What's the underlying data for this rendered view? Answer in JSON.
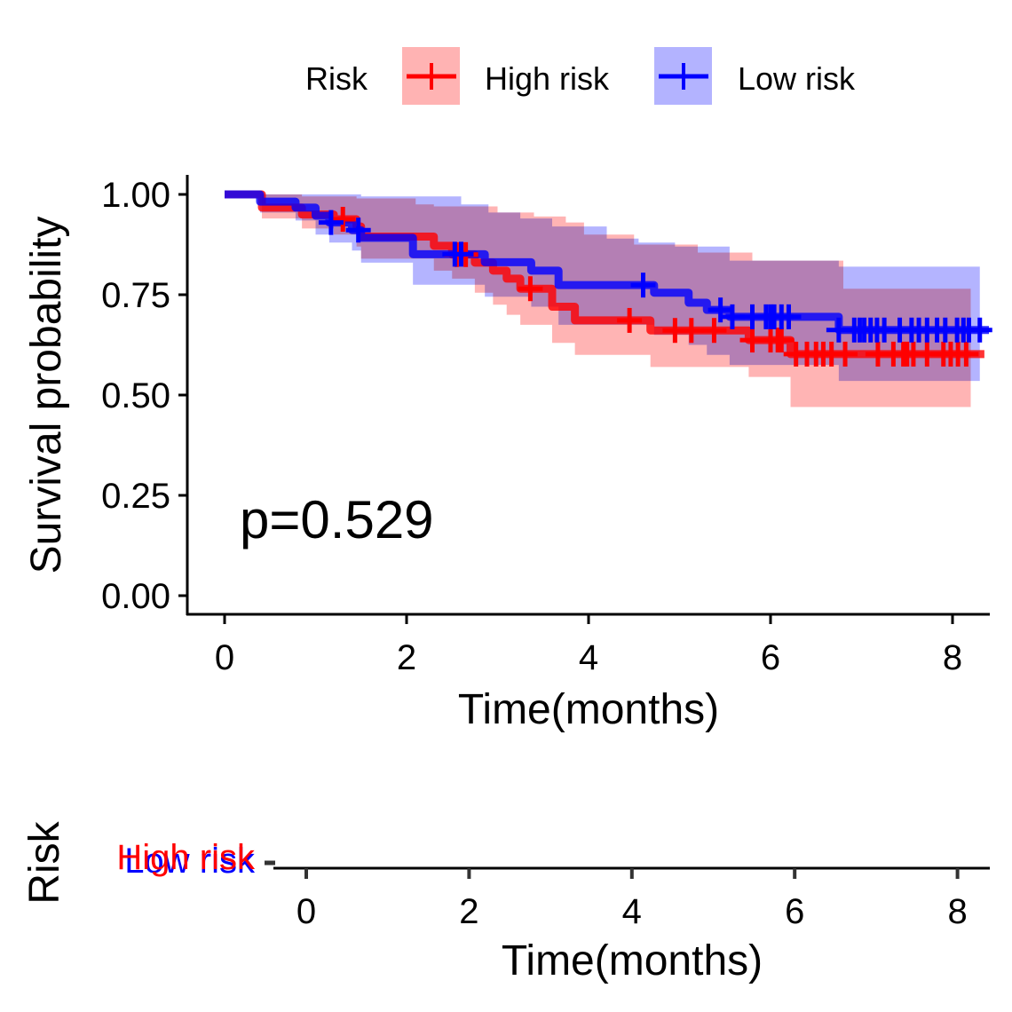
{
  "chart_data": [
    {
      "type": "line",
      "subtype": "kaplan-meier",
      "title": "",
      "xlabel": "Time(months)",
      "ylabel": "Survival probability",
      "xlim": [
        0,
        8.4
      ],
      "ylim": [
        0,
        1.0
      ],
      "xticks": [
        0,
        2,
        4,
        6,
        8
      ],
      "xtick_labels": [
        "0",
        "2",
        "4",
        "6",
        "8"
      ],
      "yticks": [
        0,
        0.25,
        0.5,
        0.75,
        1.0
      ],
      "ytick_labels": [
        "0.00",
        "0.25",
        "0.50",
        "0.75",
        "1.00"
      ],
      "grid": false,
      "annotation": "p=0.529",
      "legend": {
        "title": "Risk",
        "placement": "top",
        "entries": [
          {
            "label": "High risk",
            "color": "#ff0000",
            "fill": "#ffb3b3"
          },
          {
            "label": "Low risk",
            "color": "#0000ff",
            "fill": "#b3b3ff"
          }
        ]
      },
      "series": [
        {
          "name": "High risk",
          "color": "#ff0000",
          "steps": [
            [
              0,
              1.0
            ],
            [
              0.41,
              0.967
            ],
            [
              0.85,
              0.95
            ],
            [
              1.2,
              0.938
            ],
            [
              1.45,
              0.92
            ],
            [
              1.5,
              0.895
            ],
            [
              2.3,
              0.872
            ],
            [
              2.5,
              0.85
            ],
            [
              2.75,
              0.83
            ],
            [
              2.95,
              0.81
            ],
            [
              3.1,
              0.79
            ],
            [
              3.25,
              0.765
            ],
            [
              3.6,
              0.72
            ],
            [
              3.85,
              0.686
            ],
            [
              4.68,
              0.661
            ],
            [
              5.76,
              0.637
            ],
            [
              6.22,
              0.602
            ]
          ],
          "end": 8.35,
          "upper": [
            [
              0,
              1.0
            ],
            [
              0.41,
              1.0
            ],
            [
              0.85,
              0.995
            ],
            [
              1.45,
              0.99
            ],
            [
              2.1,
              0.975
            ],
            [
              2.3,
              0.97
            ],
            [
              3.0,
              0.955
            ],
            [
              3.4,
              0.945
            ],
            [
              3.75,
              0.93
            ],
            [
              3.95,
              0.9
            ],
            [
              4.5,
              0.875
            ],
            [
              5.2,
              0.855
            ],
            [
              5.8,
              0.835
            ],
            [
              6.8,
              0.765
            ]
          ],
          "lower": [
            [
              0,
              1.0
            ],
            [
              0.41,
              0.94
            ],
            [
              0.85,
              0.915
            ],
            [
              1.2,
              0.9
            ],
            [
              1.45,
              0.87
            ],
            [
              1.5,
              0.84
            ],
            [
              2.3,
              0.81
            ],
            [
              2.5,
              0.79
            ],
            [
              2.75,
              0.755
            ],
            [
              2.95,
              0.725
            ],
            [
              3.1,
              0.7
            ],
            [
              3.25,
              0.675
            ],
            [
              3.6,
              0.63
            ],
            [
              3.85,
              0.6
            ],
            [
              4.68,
              0.57
            ],
            [
              5.76,
              0.545
            ],
            [
              6.22,
              0.47
            ]
          ],
          "band_end": 8.2,
          "censored": [
            1.3,
            2.55,
            2.65,
            3.36,
            4.45,
            4.95,
            5.13,
            5.38,
            5.8,
            6.0,
            6.08,
            6.12,
            6.28,
            6.4,
            6.5,
            6.58,
            6.67,
            6.82,
            7.18,
            7.35,
            7.46,
            7.5,
            7.57,
            7.72,
            7.9,
            7.98,
            8.06,
            8.15
          ]
        },
        {
          "name": "Low risk",
          "color": "#0000ff",
          "steps": [
            [
              0,
              1.0
            ],
            [
              0.39,
              0.982
            ],
            [
              0.78,
              0.967
            ],
            [
              1.0,
              0.947
            ],
            [
              1.15,
              0.93
            ],
            [
              1.4,
              0.911
            ],
            [
              1.5,
              0.892
            ],
            [
              2.07,
              0.851
            ],
            [
              2.86,
              0.831
            ],
            [
              3.37,
              0.81
            ],
            [
              3.67,
              0.774
            ],
            [
              4.72,
              0.755
            ],
            [
              5.1,
              0.73
            ],
            [
              5.3,
              0.712
            ],
            [
              5.55,
              0.695
            ],
            [
              6.75,
              0.662
            ]
          ],
          "end": 8.4,
          "upper": [
            [
              0,
              1.0
            ],
            [
              0.39,
              1.0
            ],
            [
              1.0,
              1.0
            ],
            [
              1.5,
              0.995
            ],
            [
              2.6,
              0.975
            ],
            [
              2.9,
              0.955
            ],
            [
              3.25,
              0.94
            ],
            [
              3.6,
              0.92
            ],
            [
              4.2,
              0.89
            ],
            [
              4.55,
              0.88
            ],
            [
              4.95,
              0.87
            ],
            [
              5.55,
              0.835
            ],
            [
              6.75,
              0.82
            ],
            [
              7.0,
              0.82
            ]
          ],
          "lower": [
            [
              0,
              1.0
            ],
            [
              0.39,
              0.955
            ],
            [
              0.78,
              0.935
            ],
            [
              1.0,
              0.9
            ],
            [
              1.15,
              0.88
            ],
            [
              1.4,
              0.86
            ],
            [
              1.5,
              0.83
            ],
            [
              2.07,
              0.775
            ],
            [
              2.86,
              0.745
            ],
            [
              3.37,
              0.72
            ],
            [
              3.67,
              0.675
            ],
            [
              4.72,
              0.65
            ],
            [
              5.1,
              0.625
            ],
            [
              5.3,
              0.6
            ],
            [
              5.55,
              0.575
            ],
            [
              6.75,
              0.535
            ]
          ],
          "band_end": 8.3,
          "censored": [
            1.17,
            1.47,
            2.53,
            2.6,
            4.6,
            5.45,
            5.58,
            5.8,
            5.95,
            6.0,
            6.04,
            6.12,
            6.2,
            6.75,
            6.92,
            6.98,
            7.03,
            7.1,
            7.17,
            7.25,
            7.42,
            7.55,
            7.63,
            7.72,
            7.83,
            7.92,
            8.05,
            8.12,
            8.18,
            8.3
          ]
        }
      ]
    },
    {
      "type": "table",
      "title": "Risk",
      "xlabel": "Time(months)",
      "xlim": [
        -0.5,
        8.4
      ],
      "xticks": [
        0,
        2,
        4,
        6,
        8
      ],
      "xtick_labels": [
        "0",
        "2",
        "4",
        "6",
        "8"
      ],
      "rows": [
        {
          "label": "High risk",
          "color": "#ff0000"
        },
        {
          "label": "Low risk",
          "color": "#0000ff"
        }
      ],
      "note": "number-at-risk values are clipped and not legible"
    }
  ]
}
